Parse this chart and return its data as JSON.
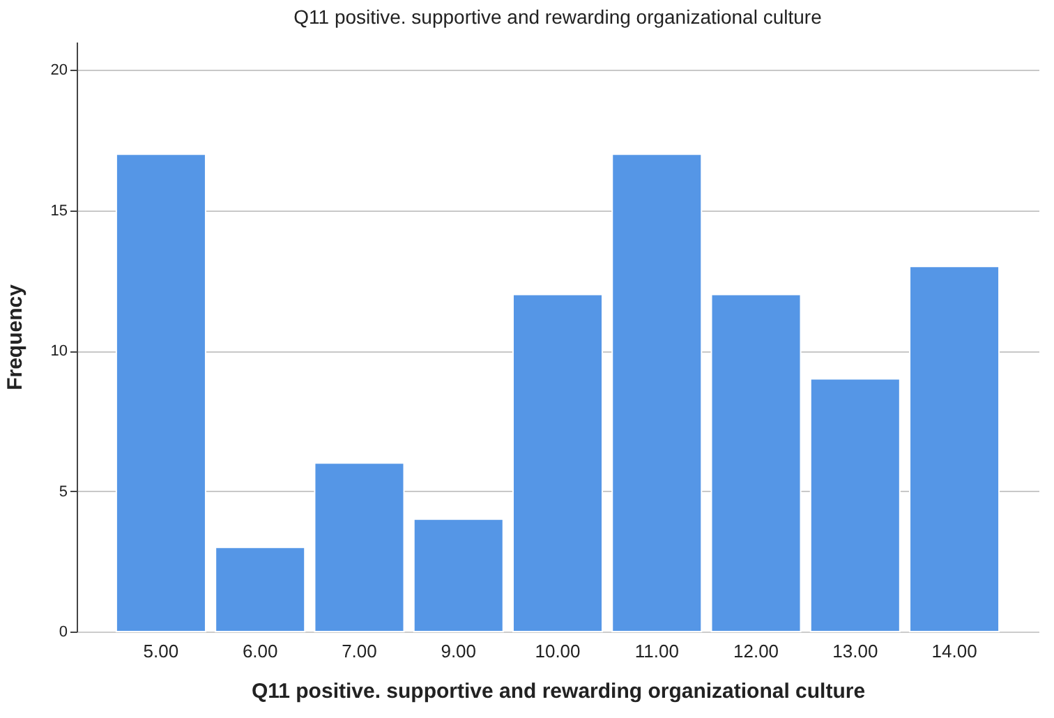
{
  "chart_data": {
    "type": "bar",
    "title": "Q11 positive. supportive and rewarding organizational culture",
    "xlabel": "Q11 positive. supportive and rewarding organizational culture",
    "ylabel": "Frequency",
    "categories": [
      "5.00",
      "6.00",
      "7.00",
      "9.00",
      "10.00",
      "11.00",
      "12.00",
      "13.00",
      "14.00"
    ],
    "values": [
      17,
      3,
      6,
      4,
      12,
      17,
      12,
      9,
      13
    ],
    "color": "#5596e6",
    "ylim": [
      0,
      21
    ],
    "yticks": [
      0,
      5,
      10,
      15,
      20
    ],
    "grid": "y"
  }
}
